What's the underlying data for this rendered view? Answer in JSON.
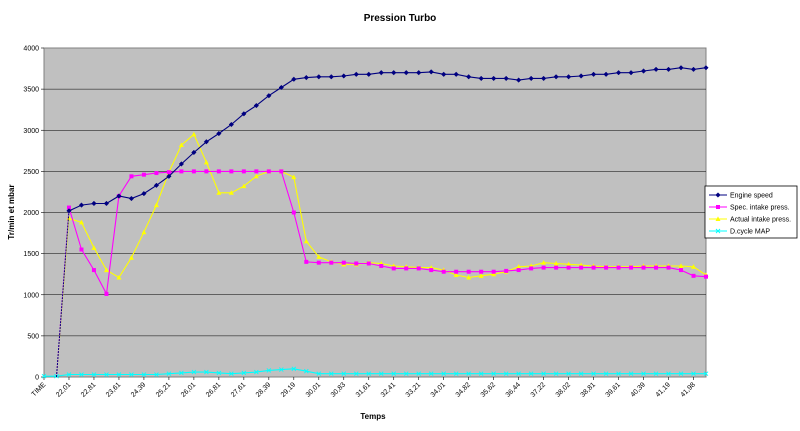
{
  "chart_data": {
    "type": "line",
    "title": "Pression Turbo",
    "xlabel": "Temps",
    "ylabel": "Tr/min et mbar",
    "ylim": [
      0,
      4000
    ],
    "yticks": [
      "0",
      "500",
      "1000",
      "1500",
      "2000",
      "2500",
      "3000",
      "3500",
      "4000"
    ],
    "grid": true,
    "legend_position": "right",
    "plot_background": "#c0c0c0",
    "x_tick_labels": [
      "TIME",
      "22,01",
      "22,81",
      "23,61",
      "24,39",
      "25,21",
      "26,01",
      "26,81",
      "27,61",
      "28,39",
      "29,19",
      "30,01",
      "30,83",
      "31,61",
      "32,41",
      "33,21",
      "34,01",
      "34,82",
      "35,62",
      "36,44",
      "37,22",
      "38,02",
      "38,81",
      "39,61",
      "40,39",
      "41,19",
      "41,98"
    ],
    "series": [
      {
        "name": "Engine speed",
        "color": "#000080",
        "marker": "diamond",
        "values": [
          null,
          null,
          2020,
          2090,
          2110,
          2110,
          2200,
          2170,
          2230,
          2330,
          2440,
          2590,
          2730,
          2860,
          2960,
          3070,
          3200,
          3300,
          3420,
          3520,
          3620,
          3640,
          3650,
          3650,
          3660,
          3680,
          3680,
          3700,
          3700,
          3700,
          3700,
          3710,
          3680,
          3680,
          3650,
          3630,
          3630,
          3630,
          3610,
          3630,
          3630,
          3650,
          3650,
          3660,
          3680,
          3680,
          3700,
          3700,
          3720,
          3740,
          3740,
          3760,
          3740,
          3760
        ]
      },
      {
        "name": "Spec. intake press.",
        "color": "#ff00ff",
        "marker": "square",
        "values": [
          null,
          null,
          2060,
          1550,
          1300,
          1010,
          2200,
          2440,
          2460,
          2480,
          2490,
          2500,
          2500,
          2500,
          2500,
          2500,
          2500,
          2500,
          2500,
          2500,
          2000,
          1400,
          1390,
          1390,
          1390,
          1380,
          1380,
          1350,
          1320,
          1320,
          1320,
          1300,
          1280,
          1280,
          1280,
          1280,
          1280,
          1290,
          1300,
          1320,
          1330,
          1330,
          1330,
          1330,
          1330,
          1330,
          1330,
          1330,
          1330,
          1330,
          1330,
          1300,
          1230,
          1220
        ]
      },
      {
        "name": "Actual intake press.",
        "color": "#ffff00",
        "marker": "triangle",
        "values": [
          null,
          null,
          1930,
          1880,
          1570,
          1300,
          1210,
          1450,
          1760,
          2090,
          2490,
          2820,
          2950,
          2610,
          2240,
          2240,
          2320,
          2440,
          2500,
          2500,
          2430,
          1650,
          1460,
          1400,
          1370,
          1370,
          1390,
          1380,
          1350,
          1340,
          1330,
          1330,
          1300,
          1240,
          1210,
          1230,
          1250,
          1280,
          1340,
          1350,
          1390,
          1380,
          1370,
          1360,
          1350,
          1340,
          1340,
          1340,
          1350,
          1350,
          1350,
          1350,
          1340,
          1240
        ]
      },
      {
        "name": "D.cycle MAP",
        "color": "#00ffff",
        "marker": "cross",
        "values": [
          10,
          10,
          30,
          30,
          30,
          30,
          30,
          30,
          30,
          30,
          40,
          50,
          60,
          60,
          50,
          40,
          50,
          60,
          80,
          90,
          100,
          70,
          40,
          40,
          40,
          40,
          40,
          40,
          40,
          40,
          40,
          40,
          40,
          40,
          40,
          40,
          40,
          40,
          40,
          40,
          40,
          40,
          40,
          40,
          40,
          40,
          40,
          40,
          40,
          40,
          40,
          40,
          40,
          40
        ]
      }
    ]
  }
}
